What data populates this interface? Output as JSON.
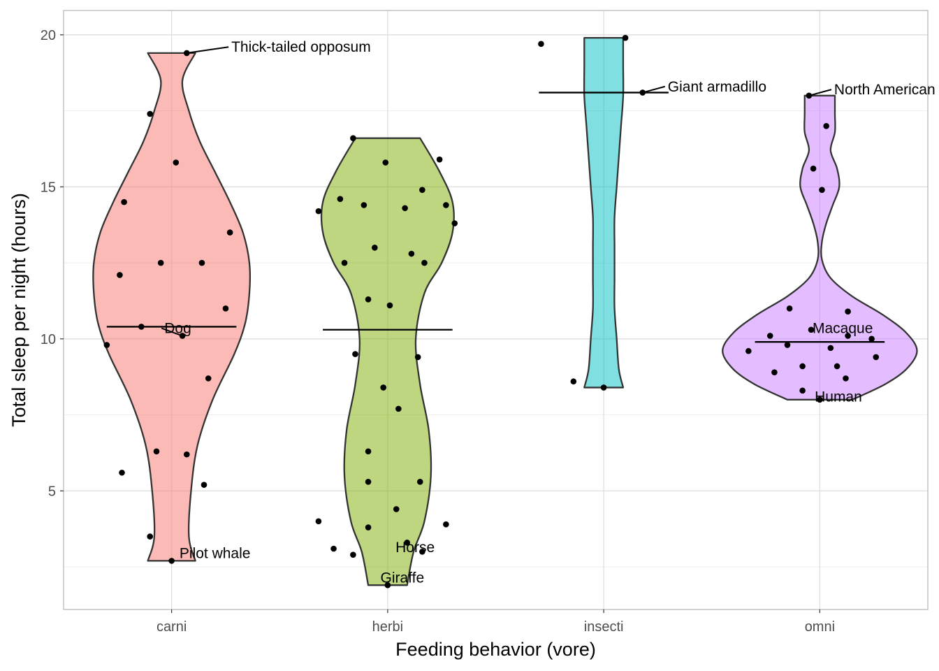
{
  "chart_data": {
    "type": "violin",
    "title": "",
    "xlabel": "Feeding behavior (vore)",
    "ylabel": "Total sleep per night (hours)",
    "ylim": [
      1.1,
      20.8
    ],
    "yticks": [
      5,
      10,
      15,
      20
    ],
    "grid": true,
    "legend": "none",
    "categories": [
      "carni",
      "herbi",
      "insecti",
      "omni"
    ],
    "colors": {
      "carni": "#F8766D",
      "herbi": "#7CAE00",
      "insecti": "#00BFC4",
      "omni": "#C77CFF"
    },
    "groups": [
      {
        "name": "carni",
        "median": 10.4,
        "violin_range": [
          2.7,
          19.4
        ],
        "density_profile": [
          [
            2.7,
            0.11
          ],
          [
            3.5,
            0.08
          ],
          [
            5,
            0.09
          ],
          [
            6.5,
            0.12
          ],
          [
            8,
            0.19
          ],
          [
            9.5,
            0.29
          ],
          [
            10.5,
            0.34
          ],
          [
            11.5,
            0.36
          ],
          [
            12.5,
            0.36
          ],
          [
            13.5,
            0.33
          ],
          [
            14.5,
            0.27
          ],
          [
            15.5,
            0.2
          ],
          [
            16.5,
            0.13
          ],
          [
            17.5,
            0.08
          ],
          [
            18.5,
            0.05
          ],
          [
            19.4,
            0.11
          ]
        ],
        "points": [
          {
            "x": -0.1,
            "y": 17.4
          },
          {
            "x": 0.02,
            "y": 15.8
          },
          {
            "x": 0.07,
            "y": 19.4
          },
          {
            "x": -0.22,
            "y": 14.5
          },
          {
            "x": 0.27,
            "y": 13.5
          },
          {
            "x": -0.05,
            "y": 12.5
          },
          {
            "x": 0.14,
            "y": 12.5
          },
          {
            "x": -0.24,
            "y": 12.1
          },
          {
            "x": 0.25,
            "y": 11.0
          },
          {
            "x": -0.14,
            "y": 10.4
          },
          {
            "x": 0.05,
            "y": 10.1
          },
          {
            "x": -0.3,
            "y": 9.8
          },
          {
            "x": 0.17,
            "y": 8.7
          },
          {
            "x": -0.07,
            "y": 6.3
          },
          {
            "x": 0.07,
            "y": 6.2
          },
          {
            "x": -0.23,
            "y": 5.6
          },
          {
            "x": 0.15,
            "y": 5.2
          },
          {
            "x": -0.1,
            "y": 3.5
          },
          {
            "x": 0.0,
            "y": 2.7
          }
        ]
      },
      {
        "name": "herbi",
        "median": 10.3,
        "violin_range": [
          1.9,
          16.6
        ],
        "density_profile": [
          [
            1.9,
            0.09
          ],
          [
            3,
            0.12
          ],
          [
            4,
            0.17
          ],
          [
            5.5,
            0.2
          ],
          [
            7,
            0.19
          ],
          [
            8.5,
            0.15
          ],
          [
            10,
            0.13
          ],
          [
            11.5,
            0.17
          ],
          [
            12.5,
            0.25
          ],
          [
            13.5,
            0.3
          ],
          [
            14.5,
            0.3
          ],
          [
            15.5,
            0.24
          ],
          [
            16.6,
            0.15
          ]
        ],
        "points": [
          {
            "x": -0.16,
            "y": 16.6
          },
          {
            "x": 0.24,
            "y": 15.9
          },
          {
            "x": -0.01,
            "y": 15.8
          },
          {
            "x": 0.16,
            "y": 14.9
          },
          {
            "x": -0.22,
            "y": 14.6
          },
          {
            "x": -0.11,
            "y": 14.4
          },
          {
            "x": 0.27,
            "y": 14.4
          },
          {
            "x": 0.08,
            "y": 14.3
          },
          {
            "x": -0.32,
            "y": 14.2
          },
          {
            "x": 0.31,
            "y": 13.8
          },
          {
            "x": -0.06,
            "y": 13.0
          },
          {
            "x": 0.11,
            "y": 12.8
          },
          {
            "x": -0.2,
            "y": 12.5
          },
          {
            "x": 0.17,
            "y": 12.5
          },
          {
            "x": -0.09,
            "y": 11.3
          },
          {
            "x": 0.01,
            "y": 11.1
          },
          {
            "x": -0.15,
            "y": 9.5
          },
          {
            "x": 0.14,
            "y": 9.4
          },
          {
            "x": -0.02,
            "y": 8.4
          },
          {
            "x": 0.05,
            "y": 7.7
          },
          {
            "x": -0.09,
            "y": 6.3
          },
          {
            "x": -0.09,
            "y": 5.3
          },
          {
            "x": 0.15,
            "y": 5.3
          },
          {
            "x": 0.04,
            "y": 4.4
          },
          {
            "x": -0.32,
            "y": 4.0
          },
          {
            "x": 0.27,
            "y": 3.9
          },
          {
            "x": -0.09,
            "y": 3.8
          },
          {
            "x": 0.09,
            "y": 3.3
          },
          {
            "x": -0.25,
            "y": 3.1
          },
          {
            "x": 0.16,
            "y": 3.0
          },
          {
            "x": -0.16,
            "y": 2.9
          },
          {
            "x": 0.0,
            "y": 1.9
          }
        ]
      },
      {
        "name": "insecti",
        "median": 18.1,
        "violin_range": [
          8.4,
          19.9
        ],
        "density_profile": [
          [
            8.4,
            0.09
          ],
          [
            9,
            0.07
          ],
          [
            10,
            0.06
          ],
          [
            11,
            0.05
          ],
          [
            12,
            0.05
          ],
          [
            13,
            0.05
          ],
          [
            14,
            0.05
          ],
          [
            15,
            0.06
          ],
          [
            16,
            0.07
          ],
          [
            17,
            0.08
          ],
          [
            18,
            0.09
          ],
          [
            19,
            0.09
          ],
          [
            19.9,
            0.09
          ]
        ],
        "points": [
          {
            "x": -0.29,
            "y": 19.7
          },
          {
            "x": 0.1,
            "y": 19.9
          },
          {
            "x": 0.18,
            "y": 18.1
          },
          {
            "x": -0.14,
            "y": 8.6
          },
          {
            "x": 0.0,
            "y": 8.4
          }
        ]
      },
      {
        "name": "omni",
        "median": 9.9,
        "violin_range": [
          8.0,
          18.0
        ],
        "density_profile": [
          [
            8,
            0.15
          ],
          [
            8.5,
            0.3
          ],
          [
            9,
            0.4
          ],
          [
            9.6,
            0.45
          ],
          [
            10.2,
            0.4
          ],
          [
            10.8,
            0.29
          ],
          [
            11.4,
            0.15
          ],
          [
            12,
            0.05
          ],
          [
            12.6,
            0.01
          ],
          [
            13.2,
            0.01
          ],
          [
            13.8,
            0.03
          ],
          [
            14.4,
            0.06
          ],
          [
            15,
            0.09
          ],
          [
            15.6,
            0.08
          ],
          [
            16.2,
            0.05
          ],
          [
            16.8,
            0.07
          ],
          [
            17.4,
            0.07
          ],
          [
            18,
            0.07
          ]
        ],
        "points": [
          {
            "x": -0.05,
            "y": 18.0
          },
          {
            "x": 0.03,
            "y": 17.0
          },
          {
            "x": -0.03,
            "y": 15.6
          },
          {
            "x": 0.01,
            "y": 14.9
          },
          {
            "x": -0.14,
            "y": 11.0
          },
          {
            "x": 0.13,
            "y": 10.9
          },
          {
            "x": -0.04,
            "y": 10.3
          },
          {
            "x": -0.23,
            "y": 10.1
          },
          {
            "x": 0.13,
            "y": 10.1
          },
          {
            "x": 0.24,
            "y": 10.0
          },
          {
            "x": -0.15,
            "y": 9.8
          },
          {
            "x": 0.05,
            "y": 9.7
          },
          {
            "x": -0.33,
            "y": 9.6
          },
          {
            "x": 0.26,
            "y": 9.4
          },
          {
            "x": -0.08,
            "y": 9.1
          },
          {
            "x": 0.08,
            "y": 9.1
          },
          {
            "x": -0.21,
            "y": 8.9
          },
          {
            "x": 0.12,
            "y": 8.7
          },
          {
            "x": -0.08,
            "y": 8.3
          },
          {
            "x": 0.0,
            "y": 8.0
          }
        ]
      }
    ],
    "annotations": [
      {
        "text": "Thick-tailed opposum",
        "group": "carni",
        "x": 0.07,
        "y": 19.4,
        "label_dx": 0.2,
        "label_y": 19.6,
        "leader": true
      },
      {
        "text": "Dog",
        "group": "carni",
        "x": 0.05,
        "y": 10.1,
        "label_dx": -0.09,
        "label_y": 10.35,
        "leader": true
      },
      {
        "text": "Pilot whale",
        "group": "carni",
        "x": 0.0,
        "y": 2.7,
        "label_dx": 0.03,
        "label_y": 2.95,
        "leader": false
      },
      {
        "text": "Horse",
        "group": "herbi",
        "x": 0.09,
        "y": 3.3,
        "label_dx": -0.06,
        "label_y": 3.15,
        "leader": false
      },
      {
        "text": "Giraffe",
        "group": "herbi",
        "x": 0.0,
        "y": 1.9,
        "label_dx": -0.04,
        "label_y": 2.15,
        "leader": false
      },
      {
        "text": "Giant armadillo",
        "group": "insecti",
        "x": 0.18,
        "y": 18.1,
        "label_dx": 0.11,
        "label_y": 18.3,
        "leader": true
      },
      {
        "text": "North American opossum",
        "group": "omni",
        "x": -0.05,
        "y": 18.0,
        "label_dx": 0.11,
        "label_y": 18.2,
        "leader": true
      },
      {
        "text": "Macaque",
        "group": "omni",
        "x": -0.04,
        "y": 10.3,
        "label_dx": 0.0,
        "label_y": 10.35,
        "leader": false
      },
      {
        "text": "Human",
        "group": "omni",
        "x": 0.0,
        "y": 8.0,
        "label_dx": -0.03,
        "label_y": 8.1,
        "leader": false
      }
    ]
  }
}
